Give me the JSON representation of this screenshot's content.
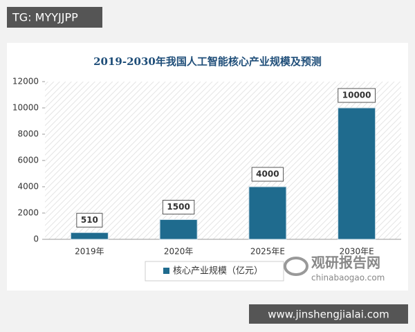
{
  "chart_data": {
    "type": "bar",
    "title": "2019-2030年我国人工智能核心产业规模及预测",
    "categories": [
      "2019年",
      "2020年",
      "2025年E",
      "2030年E"
    ],
    "series": [
      {
        "name": "核心产业规模（亿元）",
        "color": "#1f6b8e",
        "values": [
          510,
          1500,
          4000,
          10000
        ]
      }
    ],
    "ylim": [
      0,
      12000
    ],
    "yticks": [
      0,
      2000,
      4000,
      6000,
      8000,
      10000,
      12000
    ],
    "legend": "bottom"
  },
  "overlays": {
    "tag": "TG: MYYJJPP",
    "logo_name": "观研报告网",
    "logo_url": "chinabaogao.com",
    "site": "www.jinshengjialai.com"
  }
}
